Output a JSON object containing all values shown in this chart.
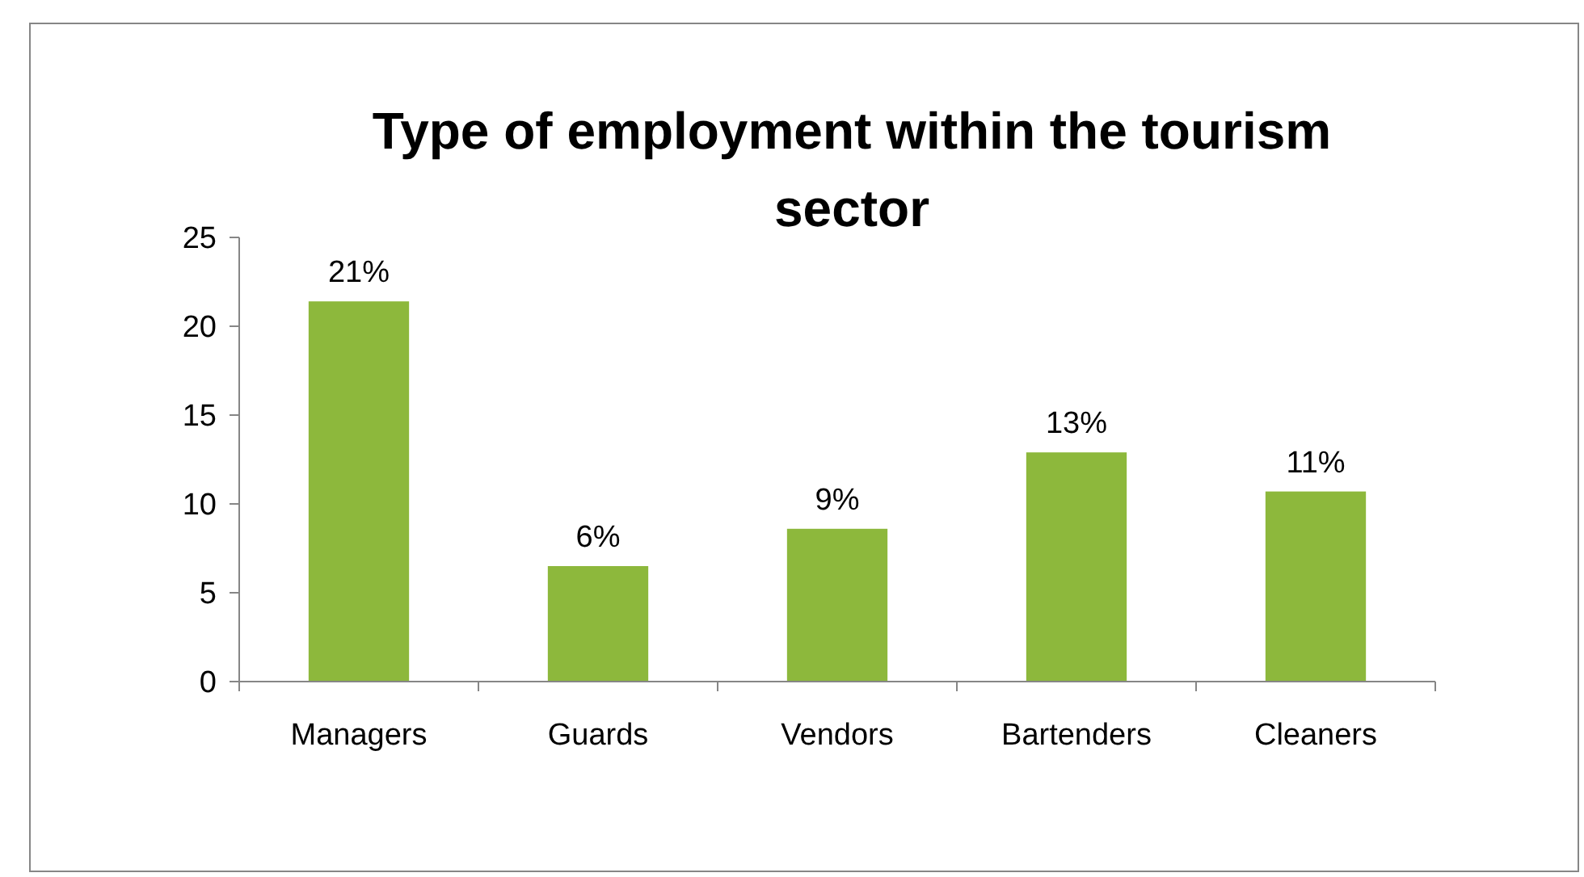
{
  "chart_data": {
    "type": "bar",
    "title": "Type of employment within the tourism sector",
    "categories": [
      "Managers",
      "Guards",
      "Vendors",
      "Bartenders",
      "Cleaners"
    ],
    "values": [
      21.4,
      6.5,
      8.6,
      12.9,
      10.7
    ],
    "value_labels": [
      "21%",
      "6%",
      "9%",
      "13%",
      "11%"
    ],
    "color": "#8db83c",
    "ylim": [
      0,
      25
    ],
    "yticks": [
      0,
      5,
      10,
      15,
      20,
      25
    ],
    "grid": false
  }
}
